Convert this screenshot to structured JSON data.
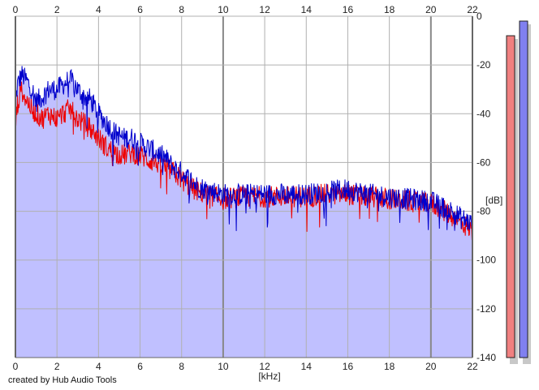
{
  "credit": "created by Hub Audio Tools",
  "chart_data": {
    "type": "line",
    "title": "",
    "xlabel": "[kHz]",
    "ylabel": "[dB]",
    "xlim": [
      0,
      22
    ],
    "ylim": [
      -140,
      0
    ],
    "x_ticks": [
      "0",
      "2",
      "4",
      "6",
      "8",
      "10",
      "12",
      "14",
      "16",
      "18",
      "20",
      "22"
    ],
    "y_ticks": [
      "0",
      "-20",
      "-40",
      "-60",
      "-80",
      "-100",
      "-120",
      "-140"
    ],
    "grid": true,
    "fill_below_series": "Right",
    "fill_color": "#c0c0ff",
    "series": [
      {
        "color": "#0000cc",
        "x": [
          0,
          0.1,
          0.3,
          0.5,
          0.8,
          1.0,
          1.3,
          1.6,
          2.0,
          2.3,
          2.6,
          2.8,
          3.0,
          3.3,
          3.6,
          4.0,
          4.4,
          4.8,
          5.2,
          5.6,
          6.0,
          6.4,
          6.8,
          7.2,
          7.6,
          8.0,
          8.4,
          8.8,
          9.2,
          9.6,
          10,
          11,
          12,
          13,
          14,
          15,
          16,
          17,
          18,
          19,
          20,
          20.5,
          21,
          21.5,
          22
        ],
        "values": [
          -36,
          -28,
          -24,
          -26,
          -30,
          -35,
          -33,
          -30,
          -30,
          -28,
          -26,
          -27,
          -30,
          -33,
          -34,
          -40,
          -44,
          -48,
          -50,
          -50,
          -52,
          -54,
          -56,
          -58,
          -62,
          -64,
          -67,
          -70,
          -71,
          -72,
          -73,
          -73,
          -73,
          -73,
          -73,
          -72,
          -71,
          -73,
          -74,
          -75,
          -76,
          -78,
          -80,
          -83,
          -85
        ]
      },
      {
        "color": "#ee0000",
        "x": [
          0,
          0.1,
          0.3,
          0.5,
          0.8,
          1.0,
          1.3,
          1.6,
          2.0,
          2.3,
          2.6,
          2.8,
          3.0,
          3.3,
          3.6,
          4.0,
          4.4,
          4.8,
          5.2,
          5.6,
          6.0,
          6.4,
          6.8,
          7.2,
          7.6,
          8.0,
          8.4,
          8.8,
          9.2,
          9.6,
          10,
          11,
          12,
          13,
          14,
          15,
          16,
          17,
          18,
          19,
          20,
          20.5,
          21,
          21.5,
          22
        ],
        "values": [
          -45,
          -36,
          -30,
          -34,
          -38,
          -40,
          -42,
          -40,
          -42,
          -40,
          -38,
          -40,
          -42,
          -44,
          -46,
          -50,
          -54,
          -56,
          -57,
          -56,
          -57,
          -59,
          -60,
          -62,
          -64,
          -67,
          -70,
          -72,
          -73,
          -74,
          -75,
          -74,
          -74,
          -74,
          -74,
          -73,
          -73,
          -74,
          -75,
          -76,
          -77,
          -79,
          -82,
          -85,
          -88
        ]
      }
    ],
    "meter": {
      "ylim": [
        -140,
        0
      ],
      "bars": [
        {
          "color": "#f08080",
          "level_db": -8
        },
        {
          "color": "#8080f0",
          "level_db": -2
        }
      ]
    }
  }
}
